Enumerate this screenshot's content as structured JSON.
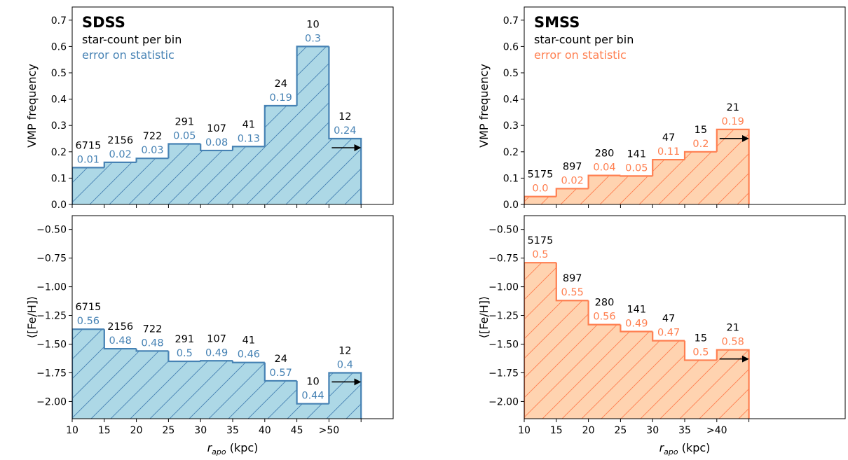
{
  "chart_data": [
    {
      "id": "sdss-top",
      "type": "step",
      "panel_label": "SDSS",
      "legend_count_text": "star-count per bin",
      "legend_error_text": "error on statistic",
      "ylabel": "VMP frequency",
      "xlabel": "",
      "ylim": [
        0,
        0.75
      ],
      "yticks": [
        "0.0",
        "0.1",
        "0.2",
        "0.3",
        "0.4",
        "0.5",
        "0.6",
        "0.7"
      ],
      "bin_edges": [
        10,
        15,
        20,
        25,
        30,
        35,
        40,
        45,
        50,
        55
      ],
      "values": [
        0.14,
        0.16,
        0.175,
        0.23,
        0.205,
        0.22,
        0.375,
        0.6,
        0.25
      ],
      "counts": [
        "6715",
        "2156",
        "722",
        "291",
        "107",
        "41",
        "24",
        "10",
        "12"
      ],
      "errors": [
        "0.01",
        "0.02",
        "0.03",
        "0.05",
        "0.08",
        "0.13",
        "0.19",
        "0.3",
        "0.24"
      ],
      "open_ended_last_bin": true
    },
    {
      "id": "sdss-bottom",
      "type": "step",
      "ylabel": "⟨[Fe/H]⟩",
      "xlabel": "r_apo (kpc)",
      "ylim": [
        -2.15,
        -0.38
      ],
      "yticks": [
        "−0.50",
        "−0.75",
        "−1.00",
        "−1.25",
        "−1.50",
        "−1.75",
        "−2.00"
      ],
      "xticks": [
        "10",
        "15",
        "20",
        "25",
        "30",
        "35",
        "40",
        "45",
        ">50"
      ],
      "bin_edges": [
        10,
        15,
        20,
        25,
        30,
        35,
        40,
        45,
        50,
        55
      ],
      "values": [
        -1.37,
        -1.54,
        -1.56,
        -1.65,
        -1.645,
        -1.66,
        -1.82,
        -2.02,
        -1.75
      ],
      "counts": [
        "6715",
        "2156",
        "722",
        "291",
        "107",
        "41",
        "24",
        "10",
        "12"
      ],
      "errors": [
        "0.56",
        "0.48",
        "0.48",
        "0.5",
        "0.49",
        "0.46",
        "0.57",
        "0.44",
        "0.4"
      ],
      "open_ended_last_bin": true
    },
    {
      "id": "smss-top",
      "type": "step",
      "panel_label": "SMSS",
      "legend_count_text": "star-count per bin",
      "legend_error_text": "error on statistic",
      "ylabel": "VMP frequency",
      "xlabel": "",
      "ylim": [
        0,
        0.75
      ],
      "yticks": [
        "0.0",
        "0.1",
        "0.2",
        "0.3",
        "0.4",
        "0.5",
        "0.6",
        "0.7"
      ],
      "bin_edges": [
        10,
        15,
        20,
        25,
        30,
        35,
        40,
        45
      ],
      "values": [
        0.03,
        0.06,
        0.11,
        0.108,
        0.17,
        0.2,
        0.285
      ],
      "counts": [
        "5175",
        "897",
        "280",
        "141",
        "47",
        "15",
        "21"
      ],
      "errors": [
        "0.0",
        "0.02",
        "0.04",
        "0.05",
        "0.11",
        "0.2",
        "0.19"
      ],
      "open_ended_last_bin": true
    },
    {
      "id": "smss-bottom",
      "type": "step",
      "ylabel": "⟨[Fe/H]⟩",
      "xlabel": "r_apo (kpc)",
      "ylim": [
        -2.15,
        -0.38
      ],
      "yticks": [
        "−0.50",
        "−0.75",
        "−1.00",
        "−1.25",
        "−1.50",
        "−1.75",
        "−2.00"
      ],
      "xticks": [
        "10",
        "15",
        "20",
        "25",
        "30",
        "35",
        ">40"
      ],
      "bin_edges": [
        10,
        15,
        20,
        25,
        30,
        35,
        40,
        45
      ],
      "values": [
        -0.79,
        -1.12,
        -1.33,
        -1.39,
        -1.47,
        -1.64,
        -1.55
      ],
      "counts": [
        "5175",
        "897",
        "280",
        "141",
        "47",
        "15",
        "21"
      ],
      "errors": [
        "0.5",
        "0.55",
        "0.56",
        "0.49",
        "0.47",
        "0.5",
        "0.58"
      ],
      "open_ended_last_bin": true
    }
  ],
  "style": {
    "sdss_fill": "#add8e6",
    "sdss_edge": "#4682b4",
    "sdss_error_color": "#4682b4",
    "smss_fill": "#ffd3b0",
    "smss_edge": "#ff7f50",
    "smss_error_color": "#ff7f50",
    "count_color": "#000000",
    "axis_color": "#000000"
  }
}
